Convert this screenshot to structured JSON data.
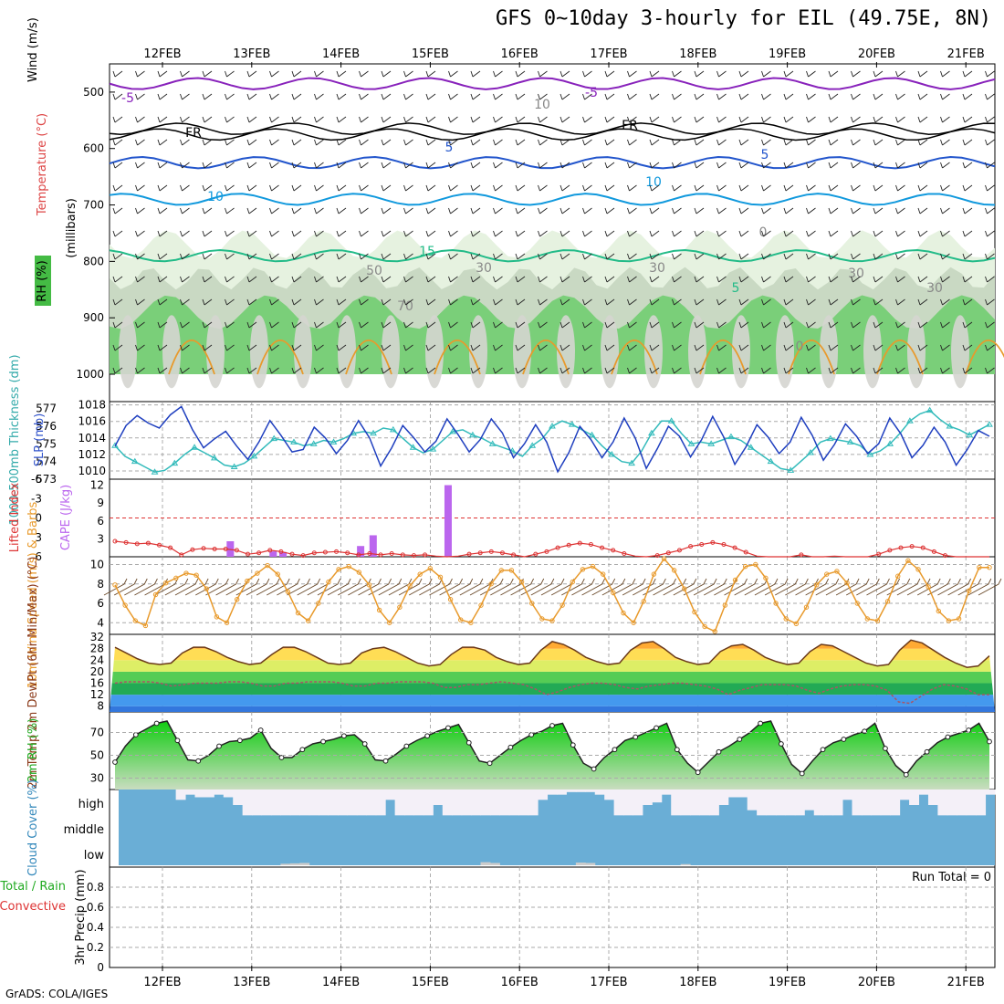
{
  "header": {
    "title": "GFS 0~10day 3-hourly for EIL (49.75E, 8N)",
    "credit": "GrADS: COLA/IGES"
  },
  "colors": {
    "rh_light": "#e6f2e0",
    "rh_mid": "#c9d9c3",
    "rh_green": "#66cc66",
    "slp": "#1f3fbf",
    "thickness": "#33bbbb",
    "lifted": "#dd3333",
    "cape": "#bb66ee",
    "wind": "#e89a2c",
    "barb": "#6b4a2a",
    "rh2m": "#22cc22",
    "cloud": "#6aaed6",
    "cloud_gap": "#f4f0f8"
  },
  "chart_data": [
    {
      "type": "area",
      "name_key": "upper_air",
      "dates": [
        "12FEB",
        "13FEB",
        "14FEB",
        "15FEB",
        "16FEB",
        "17FEB",
        "18FEB",
        "19FEB",
        "20FEB",
        "21FEB"
      ],
      "ylabel": "(millibars)",
      "side_labels": {
        "wind": "Wind (m/s)",
        "temp": "Temperature (°C)",
        "rh": "RH (%)"
      },
      "yticks": [
        500,
        600,
        700,
        800,
        900,
        1000
      ],
      "ylim": [
        450,
        1000
      ],
      "contour_labels": [
        "-5",
        "-5",
        "FR",
        "FR",
        "5",
        "5",
        "10",
        "10",
        "15",
        "5",
        "0",
        "10",
        "30",
        "50",
        "70",
        "30",
        "30",
        "0",
        "30"
      ]
    },
    {
      "type": "line",
      "name_key": "slp_thickness",
      "xlabel": "",
      "ylabel_left": "1000-500mb Thickness (dm)",
      "ylabel_right": "SLP (mb)",
      "left_ticks": [
        573,
        574,
        575,
        576,
        577
      ],
      "right_ticks": [
        1010,
        1012,
        1014,
        1016,
        1018
      ],
      "ylim_slp": [
        1009,
        1018.4
      ],
      "ylim_thick": [
        573,
        577.4
      ],
      "series": [
        {
          "name": "SLP (mb)",
          "values": [
            1013.0,
            1015.5,
            1016.7,
            1015.8,
            1015.2,
            1016.8,
            1017.8,
            1015.0,
            1012.8,
            1013.9,
            1014.8,
            1013.0,
            1011.4,
            1013.5,
            1016.1,
            1014.3,
            1012.3,
            1012.6,
            1015.3,
            1014.0,
            1012.1,
            1013.7,
            1016.1,
            1014.0,
            1010.6,
            1012.8,
            1015.5,
            1014.0,
            1012.3,
            1013.6,
            1016.3,
            1014.4,
            1012.3,
            1013.8,
            1016.3,
            1014.6,
            1011.6,
            1013.3,
            1015.6,
            1013.5,
            1009.9,
            1012.2,
            1015.4,
            1013.8,
            1011.6,
            1013.5,
            1016.4,
            1014.0,
            1010.3,
            1012.7,
            1015.4,
            1014.2,
            1011.7,
            1013.8,
            1016.6,
            1014.1,
            1010.8,
            1012.9,
            1015.6,
            1014.1,
            1012.1,
            1013.5,
            1016.5,
            1014.3,
            1011.3,
            1013.2,
            1015.7,
            1014.2,
            1012.1,
            1013.3,
            1016.4,
            1014.5,
            1011.6,
            1013.1,
            1015.3,
            1013.5,
            1010.7,
            1012.6,
            1014.9,
            1014.2
          ]
        },
        {
          "name": "1000-500mb Thickness (dm)",
          "values": [
            574.9,
            574.3,
            574.0,
            573.7,
            573.4,
            573.5,
            573.9,
            574.4,
            574.8,
            574.5,
            574.2,
            573.8,
            573.7,
            573.9,
            574.3,
            574.8,
            575.3,
            575.2,
            575.1,
            574.9,
            575.0,
            575.2,
            575.1,
            575.3,
            575.6,
            575.7,
            575.6,
            575.9,
            575.8,
            575.3,
            574.8,
            574.5,
            574.7,
            575.2,
            575.7,
            575.8,
            575.5,
            575.3,
            575.0,
            574.8,
            574.6,
            574.3,
            574.9,
            575.3,
            576.0,
            576.3,
            576.1,
            575.8,
            575.5,
            574.9,
            574.4,
            574.0,
            573.9,
            574.6,
            575.6,
            576.3,
            576.3,
            575.6,
            575.0,
            575.1,
            575.0,
            575.2,
            575.4,
            575.2,
            574.8,
            574.4,
            574.0,
            573.6,
            573.5,
            574.0,
            574.5,
            575.1,
            575.3,
            575.2,
            575.1,
            574.9,
            574.4,
            574.6,
            575.0,
            575.6,
            576.3,
            576.7,
            576.9,
            576.4,
            576.0,
            575.8,
            575.5,
            575.8,
            576.1
          ]
        }
      ]
    },
    {
      "type": "bar",
      "name_key": "lifted_cape",
      "ylabel_left": "Lifted Index",
      "ylabel_right": "CAPE (J/kg)",
      "left_ticks": [
        "-6",
        "-3",
        "0",
        "3",
        "6"
      ],
      "right_ticks": [
        "3",
        "6",
        "9",
        "12"
      ],
      "ylim_li": [
        -6,
        6
      ],
      "ylim_cape": [
        0,
        13
      ],
      "cape_bars": [
        {
          "x": 0.76,
          "value": 2.6
        },
        {
          "x": 1.24,
          "value": 0.9
        },
        {
          "x": 1.35,
          "value": 0.8
        },
        {
          "x": 2.22,
          "value": 1.8
        },
        {
          "x": 2.36,
          "value": 3.6
        },
        {
          "x": 3.2,
          "value": 12.0
        }
      ],
      "series": [
        {
          "name": "Lifted Index",
          "values": [
            3.6,
            3.8,
            4.0,
            3.9,
            4.2,
            4.6,
            5.7,
            4.9,
            4.7,
            4.8,
            4.8,
            5.0,
            5.6,
            5.4,
            5.0,
            5.2,
            5.6,
            5.8,
            5.4,
            5.3,
            5.2,
            5.4,
            5.7,
            5.5,
            5.7,
            5.5,
            5.7,
            5.8,
            5.7,
            5.9,
            6.0,
            5.9,
            5.6,
            5.4,
            5.2,
            5.4,
            5.7,
            6.0,
            5.6,
            5.2,
            4.6,
            4.2,
            3.9,
            4.1,
            4.6,
            5.0,
            5.5,
            5.9,
            6.0,
            5.8,
            5.4,
            5.0,
            4.4,
            4.1,
            3.8,
            4.1,
            4.6,
            5.3,
            5.9,
            6.0,
            6.0,
            6.0,
            5.7,
            6.0,
            6.0,
            5.9,
            6.0,
            6.0,
            6.0,
            5.6,
            5.0,
            4.6,
            4.4,
            4.6,
            5.2,
            5.8,
            6.0,
            6.0,
            6.0,
            6.0
          ]
        }
      ]
    },
    {
      "type": "line",
      "name_key": "wind10m",
      "ylabel": "10m Wind Speed (m/s) & Barbs",
      "yticks": [
        4,
        6,
        8,
        10
      ],
      "ylim": [
        2.8,
        10.8
      ],
      "series": [
        {
          "name": "10m Wind Speed",
          "values": [
            7.9,
            5.8,
            4.2,
            3.7,
            6.9,
            8.1,
            8.6,
            9.1,
            8.9,
            7.5,
            4.6,
            4.0,
            6.4,
            8.3,
            9.1,
            9.9,
            9.0,
            7.2,
            5.0,
            4.2,
            6.0,
            8.2,
            9.5,
            9.8,
            9.2,
            7.9,
            5.3,
            4.0,
            5.6,
            7.8,
            9.0,
            9.6,
            8.7,
            6.4,
            4.3,
            4.0,
            5.8,
            8.0,
            9.4,
            9.4,
            8.2,
            6.0,
            4.4,
            4.2,
            5.8,
            8.2,
            9.5,
            9.8,
            9.0,
            7.1,
            5.0,
            4.0,
            6.2,
            9.0,
            10.6,
            9.4,
            7.5,
            5.1,
            3.6,
            3.1,
            5.8,
            8.4,
            9.8,
            10.0,
            8.6,
            6.0,
            4.4,
            3.9,
            5.6,
            7.9,
            9.0,
            9.3,
            8.1,
            6.0,
            4.4,
            4.2,
            6.2,
            8.8,
            10.4,
            9.5,
            7.7,
            5.2,
            4.2,
            4.4,
            7.3,
            9.7,
            9.7
          ]
        }
      ]
    },
    {
      "type": "area",
      "name_key": "temp2m",
      "ylabel": "2m Temp 2m DewPt (6hr Min/Max) (°C)",
      "yticks": [
        8,
        12,
        16,
        20,
        24,
        28,
        32
      ],
      "ylim": [
        6,
        33
      ],
      "series": [
        {
          "name": "2m Temp",
          "values": [
            28.5,
            26.5,
            24.5,
            23.0,
            22.5,
            23.0,
            26.5,
            28.5,
            28.5,
            27.0,
            25.0,
            23.5,
            22.5,
            23.0,
            26.0,
            28.5,
            28.5,
            27.0,
            25.0,
            23.0,
            22.5,
            23.0,
            26.5,
            28.0,
            28.5,
            27.0,
            25.0,
            23.0,
            22.0,
            22.5,
            26.0,
            28.5,
            28.5,
            27.5,
            25.0,
            23.5,
            22.5,
            23.0,
            27.5,
            30.5,
            29.5,
            27.5,
            25.0,
            23.5,
            22.5,
            23.0,
            27.5,
            30.0,
            30.5,
            28.0,
            25.0,
            23.5,
            22.5,
            23.0,
            27.0,
            29.0,
            29.5,
            27.5,
            25.0,
            23.5,
            22.5,
            23.0,
            27.0,
            29.5,
            29.0,
            27.0,
            25.0,
            23.0,
            22.0,
            22.5,
            27.5,
            31.0,
            30.0,
            27.5,
            25.0,
            23.0,
            21.5,
            22.0,
            25.5
          ]
        },
        {
          "name": "2m DewPt",
          "values": [
            16.0,
            16.5,
            16.5,
            16.5,
            16.0,
            15.0,
            15.5,
            16.0,
            16.0,
            16.0,
            16.5,
            16.5,
            16.0,
            15.0,
            15.0,
            16.0,
            16.0,
            16.5,
            16.5,
            16.5,
            16.0,
            15.0,
            15.0,
            16.0,
            16.0,
            16.5,
            16.5,
            16.5,
            16.0,
            14.5,
            14.5,
            15.5,
            15.5,
            16.0,
            16.5,
            16.0,
            15.5,
            14.0,
            12.0,
            13.0,
            14.5,
            15.5,
            16.0,
            16.0,
            15.5,
            14.5,
            14.0,
            15.0,
            15.5,
            16.0,
            16.0,
            15.5,
            15.0,
            14.0,
            12.0,
            13.5,
            14.5,
            15.5,
            15.5,
            15.5,
            15.0,
            13.5,
            12.5,
            14.0,
            15.0,
            15.5,
            15.5,
            15.0,
            13.5,
            9.5,
            9.0,
            11.5,
            14.0,
            15.5,
            15.0,
            14.0,
            12.0,
            12.0
          ]
        }
      ]
    },
    {
      "type": "area",
      "name_key": "rh2m",
      "ylabel": "2m RH (%)",
      "yticks": [
        30,
        50,
        70
      ],
      "ylim": [
        20,
        88
      ],
      "series": [
        {
          "name": "2m RH",
          "values": [
            44,
            58,
            68,
            73,
            78,
            80,
            63,
            46,
            45,
            50,
            58,
            62,
            63,
            65,
            72,
            56,
            48,
            48,
            55,
            60,
            62,
            64,
            67,
            68,
            60,
            46,
            45,
            51,
            58,
            63,
            67,
            71,
            74,
            77,
            61,
            45,
            43,
            50,
            57,
            63,
            68,
            71,
            76,
            78,
            59,
            43,
            38,
            48,
            55,
            63,
            66,
            70,
            74,
            78,
            55,
            43,
            35,
            44,
            53,
            58,
            64,
            70,
            78,
            80,
            60,
            42,
            34,
            45,
            55,
            61,
            64,
            68,
            71,
            78,
            56,
            41,
            33,
            45,
            53,
            61,
            66,
            69,
            72,
            78,
            62
          ]
        }
      ]
    },
    {
      "type": "bar",
      "name_key": "cloud",
      "ylabel": "Cloud Cover (%)",
      "levels": [
        "high",
        "middle",
        "low"
      ],
      "high_gap_pct": [
        0,
        0,
        0,
        0,
        0,
        0,
        40,
        20,
        30,
        30,
        20,
        30,
        60,
        100,
        100,
        100,
        100,
        100,
        100,
        100,
        100,
        100,
        100,
        100,
        100,
        100,
        100,
        100,
        40,
        100,
        100,
        100,
        100,
        60,
        100,
        100,
        100,
        100,
        100,
        100,
        100,
        100,
        100,
        100,
        40,
        20,
        20,
        10,
        10,
        10,
        20,
        40,
        100,
        100,
        100,
        60,
        50,
        20,
        100,
        100,
        100,
        100,
        100,
        60,
        30,
        30,
        80,
        100,
        100,
        100,
        100,
        100,
        80,
        100,
        100,
        100,
        40,
        100,
        100,
        100,
        100,
        100,
        40,
        60,
        20,
        60,
        100,
        100,
        100,
        100,
        100,
        20
      ],
      "low_pct": [
        0,
        0,
        0,
        0,
        0,
        0,
        0,
        0,
        0,
        0,
        0,
        0,
        0,
        0,
        0,
        0,
        0,
        20,
        25,
        30,
        0,
        0,
        0,
        0,
        0,
        0,
        0,
        0,
        0,
        0,
        0,
        0,
        0,
        0,
        0,
        0,
        0,
        0,
        40,
        30,
        0,
        0,
        0,
        0,
        0,
        0,
        0,
        0,
        35,
        30,
        0,
        0,
        0,
        0,
        0,
        0,
        0,
        0,
        0,
        15,
        0,
        0,
        0,
        0,
        0,
        0,
        0,
        0,
        0,
        0,
        0,
        0,
        0,
        0,
        0,
        0,
        0,
        0,
        0,
        0,
        0,
        0,
        0,
        0,
        0,
        0,
        0,
        0,
        0,
        0,
        0,
        0,
        0
      ]
    },
    {
      "type": "bar",
      "name_key": "precip",
      "ylabel": "3hr Precip (mm)",
      "side_labels": {
        "total": "Total / Rain",
        "convective": "Convective"
      },
      "yticks": [
        "0",
        "0.2",
        "0.4",
        "0.6",
        "0.8"
      ],
      "ylim": [
        0,
        1
      ],
      "run_total": "Run Total = 0",
      "values": []
    }
  ]
}
